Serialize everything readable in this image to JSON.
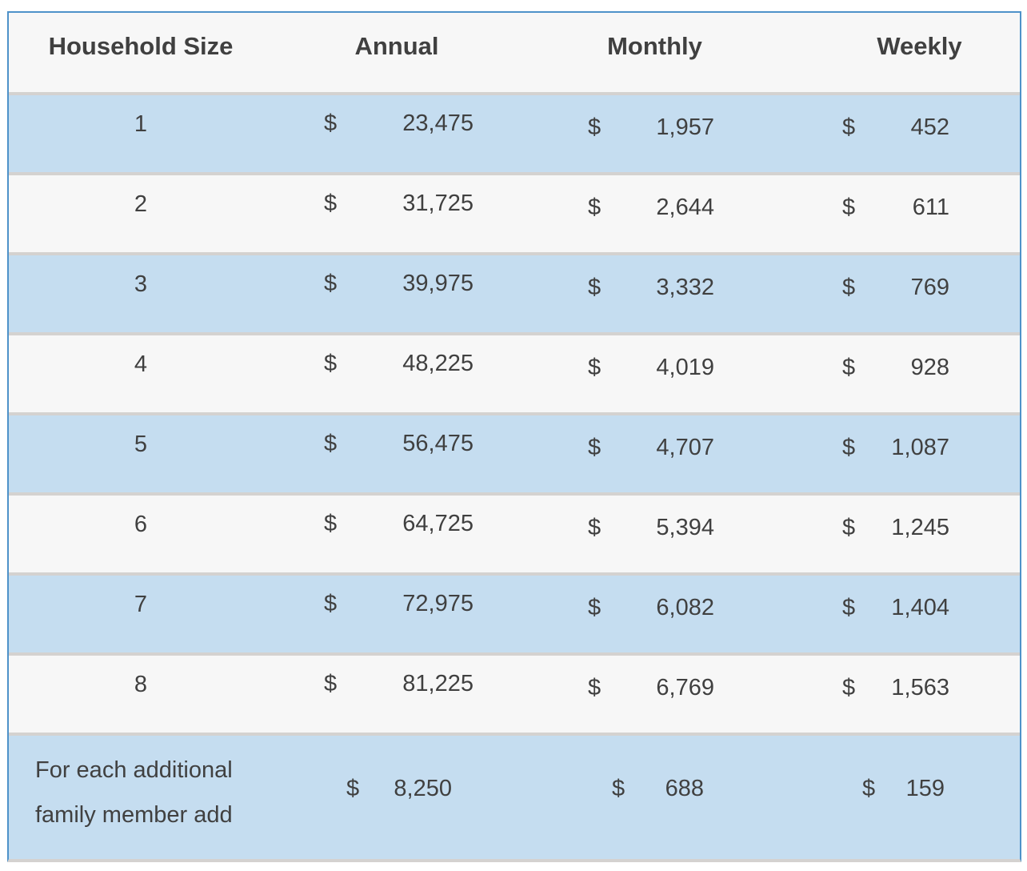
{
  "colors": {
    "page_background": "#ffffff",
    "outer_border_blue": "#4e92c9",
    "row_divider_gray": "#d4d2d0",
    "header_background": "#f7f7f7",
    "row_blue": "#c5ddf0",
    "row_gray": "#f7f7f7",
    "text_dark_gray": "#404040"
  },
  "chart_data": {
    "type": "table",
    "title": "",
    "columns": [
      "Household Size",
      "Annual",
      "Monthly",
      "Weekly"
    ],
    "currency_symbol": "$",
    "layout_hints": {
      "zebra_striping": "rows 1,3,5,7 and last row light blue; rows 2,4,6,8 light gray",
      "amount_format": "accounting style: $ left-aligned, amount right-aligned",
      "last_row_wraps_to_two_lines": true
    },
    "rows": [
      {
        "household_size": "1",
        "annual": "23,475",
        "monthly": "1,957",
        "weekly": "452"
      },
      {
        "household_size": "2",
        "annual": "31,725",
        "monthly": "2,644",
        "weekly": "611"
      },
      {
        "household_size": "3",
        "annual": "39,975",
        "monthly": "3,332",
        "weekly": "769"
      },
      {
        "household_size": "4",
        "annual": "48,225",
        "monthly": "4,019",
        "weekly": "928"
      },
      {
        "household_size": "5",
        "annual": "56,475",
        "monthly": "4,707",
        "weekly": "1,087"
      },
      {
        "household_size": "6",
        "annual": "64,725",
        "monthly": "5,394",
        "weekly": "1,245"
      },
      {
        "household_size": "7",
        "annual": "72,975",
        "monthly": "6,082",
        "weekly": "1,404"
      },
      {
        "household_size": "8",
        "annual": "81,225",
        "monthly": "6,769",
        "weekly": "1,563"
      },
      {
        "household_size": "For each additional family member add",
        "annual": "8,250",
        "monthly": "688",
        "weekly": "159"
      }
    ]
  }
}
